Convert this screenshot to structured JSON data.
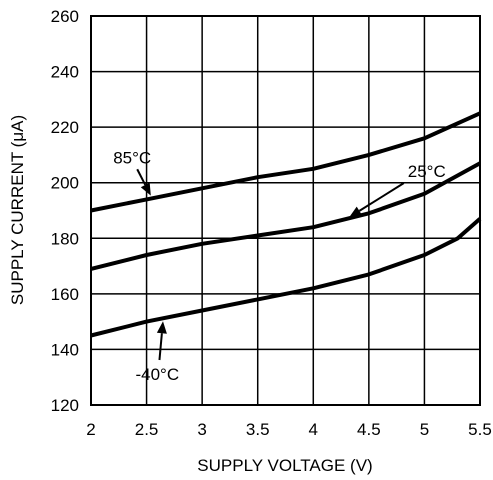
{
  "chart_data": {
    "type": "line",
    "title": "",
    "xlabel": "SUPPLY VOLTAGE (V)",
    "ylabel": "SUPPLY CURRENT (μA)",
    "xlim": [
      2,
      5.5
    ],
    "ylim": [
      120,
      260
    ],
    "grid": true,
    "xticks": [
      "2",
      "2.5",
      "3",
      "3.5",
      "4",
      "4.5",
      "5",
      "5.5"
    ],
    "yticks": [
      "120",
      "140",
      "160",
      "180",
      "200",
      "220",
      "240",
      "260"
    ],
    "series": [
      {
        "name": "85°C",
        "x": [
          2,
          2.5,
          3,
          3.5,
          4,
          4.5,
          5,
          5.5
        ],
        "y": [
          190,
          194,
          198,
          202,
          205,
          210,
          216,
          225
        ]
      },
      {
        "name": "25°C",
        "x": [
          2,
          2.5,
          3,
          3.5,
          4,
          4.5,
          5,
          5.5
        ],
        "y": [
          169,
          174,
          178,
          181,
          184,
          189,
          196,
          207
        ]
      },
      {
        "name": "-40°C",
        "x": [
          2,
          2.5,
          3,
          3.5,
          4,
          4.5,
          5,
          5.3,
          5.5
        ],
        "y": [
          145,
          150,
          154,
          158,
          162,
          167,
          174,
          180,
          187
        ]
      }
    ],
    "annotations": [
      {
        "text": "85°C",
        "series": 0,
        "x_point": 2.55,
        "text_at": [
          2.2,
          207
        ]
      },
      {
        "text": "25°C",
        "series": 1,
        "x_point": 4.3,
        "text_at": [
          4.85,
          202
        ]
      },
      {
        "text": "-40°C",
        "series": 2,
        "x_point": 2.65,
        "text_at": [
          2.4,
          129
        ]
      }
    ]
  }
}
